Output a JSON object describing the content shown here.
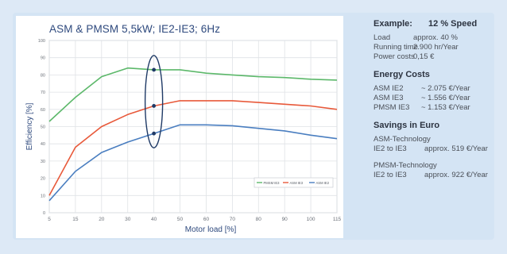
{
  "chart_data": {
    "type": "line",
    "title": "ASM & PMSM 5,5kW; IE2-IE3; 6Hz",
    "xlabel": "Motor load [%]",
    "ylabel": "Efficiency [%]",
    "x": [
      5,
      15,
      20,
      30,
      40,
      50,
      60,
      70,
      80,
      90,
      100,
      115
    ],
    "ylim": [
      0,
      100
    ],
    "yticks": [
      0,
      10,
      20,
      30,
      40,
      50,
      60,
      70,
      80,
      90,
      100
    ],
    "grid": true,
    "legend_position": "bottom-right",
    "series": [
      {
        "name": "PMSM IE3",
        "color": "#5cb86a",
        "values": [
          53,
          67,
          79,
          84,
          83,
          83,
          81,
          80,
          79,
          78.5,
          77.5,
          77
        ]
      },
      {
        "name": "ASM IE3",
        "color": "#e8593a",
        "values": [
          10,
          38,
          50,
          57,
          62,
          65,
          65,
          65,
          64,
          63,
          62,
          60
        ]
      },
      {
        "name": "ASM IE2",
        "color": "#4a7ec0",
        "values": [
          7,
          24,
          35,
          41,
          46,
          51,
          51,
          50.5,
          49,
          47.5,
          45,
          43
        ]
      }
    ],
    "annotation": {
      "x": 40,
      "points": [
        83,
        62,
        46
      ]
    }
  },
  "info": {
    "example": {
      "title": "Example:",
      "speed": "12 % Speed"
    },
    "rows1": [
      {
        "label": "Load",
        "value": "approx. 40 %"
      },
      {
        "label": "Running time",
        "value": "2.900 hr/Year"
      },
      {
        "label": "Power costs",
        "value": "0,15 €"
      }
    ],
    "energy": {
      "title": "Energy Costs",
      "rows": [
        {
          "label": "ASM IE2",
          "value": "~ 2.075 €/Year"
        },
        {
          "label": "ASM IE3",
          "value": "~ 1.556 €/Year"
        },
        {
          "label": "PMSM IE3",
          "value": "~ 1.153 €/Year"
        }
      ]
    },
    "savings": {
      "title": "Savings in Euro",
      "asm": {
        "tech": "ASM-Technology",
        "label": "IE2 to IE3",
        "value": "approx. 519 €/Year"
      },
      "pmsm": {
        "tech": "PMSM-Technology",
        "label": "IE2 to IE3",
        "value": "approx. 922 €/Year"
      }
    }
  }
}
